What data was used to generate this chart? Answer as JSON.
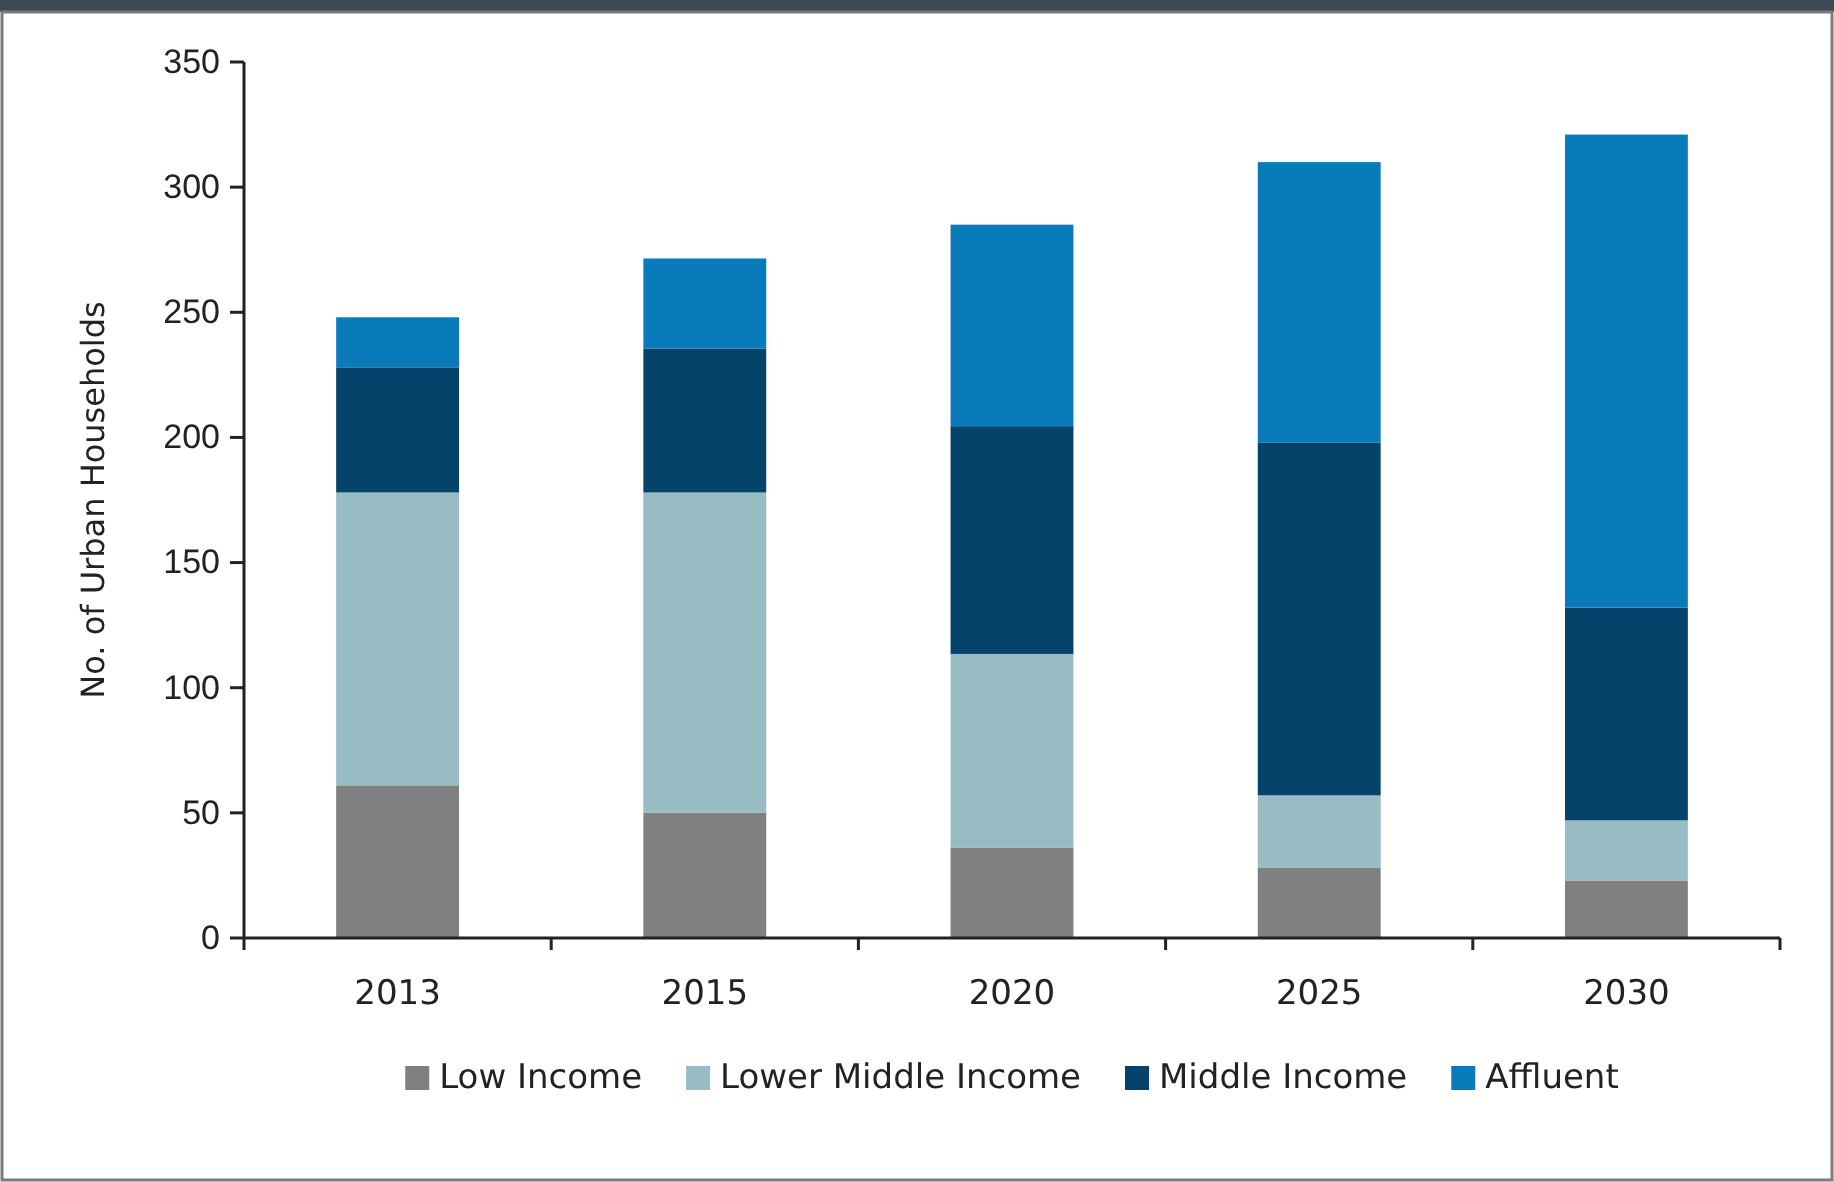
{
  "chart_data": {
    "type": "bar",
    "stacked": true,
    "ylabel": "No. of Urban Households",
    "categories": [
      "2013",
      "2015",
      "2020",
      "2025",
      "2030"
    ],
    "series": [
      {
        "name": "Low Income",
        "color": "#808080",
        "values": [
          61,
          50,
          36,
          28,
          23
        ]
      },
      {
        "name": "Lower Middle Income",
        "color": "#98bcc4",
        "values": [
          117,
          128,
          77.5,
          29,
          24
        ]
      },
      {
        "name": "Middle Income",
        "color": "#05436a",
        "values": [
          50,
          57.5,
          91,
          141,
          85
        ]
      },
      {
        "name": "Affluent",
        "color": "#0a7bba",
        "values": [
          20,
          36,
          80.5,
          112,
          189
        ]
      }
    ],
    "ylim": [
      0,
      350
    ],
    "yticks": [
      0,
      50,
      100,
      150,
      200,
      250,
      300,
      350
    ],
    "grid": false,
    "legend": "bottom"
  }
}
